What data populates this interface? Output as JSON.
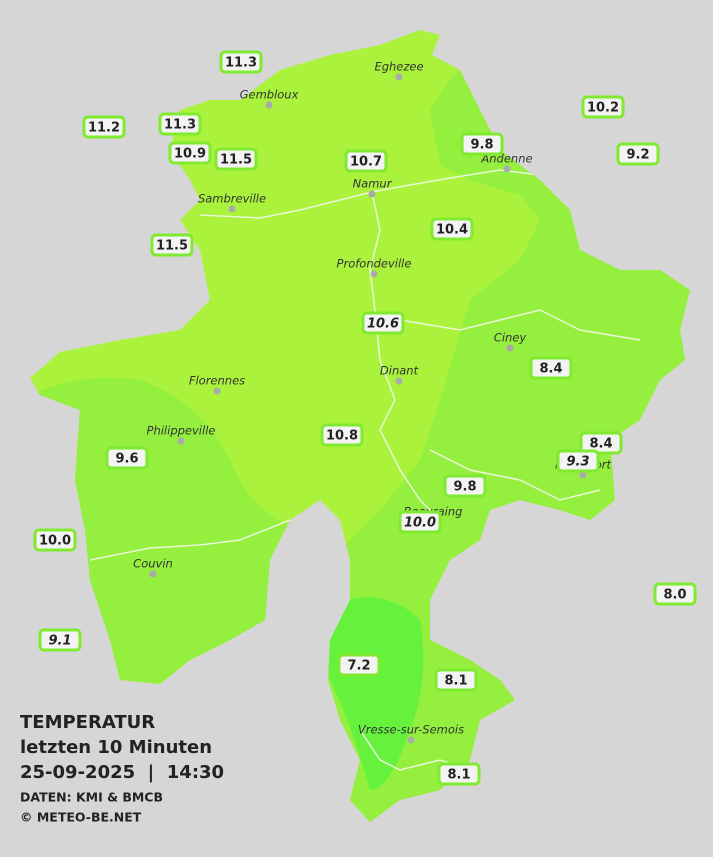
{
  "towns": [
    "Eghezee",
    "Gembloux",
    "Andenne",
    "Sambreville",
    "Namur",
    "Profondeville",
    "Ciney",
    "Dinant",
    "Florennes",
    "Philippeville",
    "Rochefort",
    "Beauraing",
    "Couvin",
    "Vresse-sur-Semois"
  ],
  "stations": [
    "11.3",
    "11.2",
    "11.3",
    "10.9",
    "11.5",
    "10.7",
    "9.8",
    "10.2",
    "9.2",
    "11.5",
    "10.4",
    "10.6",
    "8.4",
    "10.8",
    "8.4",
    "9.3",
    "9.6",
    "9.8",
    "10.0",
    "10.0",
    "8.0",
    "9.1",
    "7.2",
    "8.1",
    "8.1"
  ],
  "legend": {
    "title": "TEMPERATUR",
    "period": "letzten 10 Minuten",
    "datetime": "25-09-2025  |  14:30",
    "source": "DATEN: KMI & BMCB",
    "copyright": "© METEO-BE.NET"
  }
}
